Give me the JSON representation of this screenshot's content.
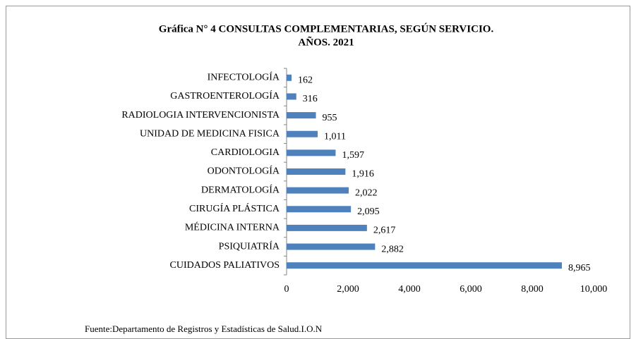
{
  "chart_data": {
    "type": "barh",
    "title": "Gráfica N° 4  CONSULTAS COMPLEMENTARIAS, SEGÚN SERVICIO.",
    "subtitle": "AÑOS. 2021",
    "source": "Fuente:Departamento de Registros y Estadísticas de Salud.I.O.N",
    "categories": [
      "INFECTOLOGÍA",
      "GASTROENTEROLOGÍA",
      "RADIOLOGIA INTERVENCIONISTA",
      "UNIDAD DE MEDICINA FISICA",
      "CARDIOLOGIA",
      "ODONTOLOGÍA",
      "DERMATOLOGÍA",
      "CIRUGÍA PLÁSTICA",
      "MÉDICINA INTERNA",
      "PSIQUIATRÍA",
      "CUIDADOS PALIATIVOS"
    ],
    "values": [
      162,
      316,
      955,
      1011,
      1597,
      1916,
      2022,
      2095,
      2617,
      2882,
      8965
    ],
    "value_labels": [
      "162",
      "316",
      "955",
      "1,011",
      "1,597",
      "1,916",
      "2,022",
      "2,095",
      "2,617",
      "2,882",
      "8,965"
    ],
    "color": "#4f81bd",
    "xlim": [
      0,
      10000
    ],
    "xticks": [
      0,
      {
        "value": 2000,
        "label": "2,000"
      },
      {
        "value": 4000,
        "label": "4,000"
      },
      {
        "value": 6000,
        "label": "6,000"
      },
      {
        "value": 8000,
        "label": "8,000"
      },
      {
        "value": 10000,
        "label": "10,000"
      }
    ],
    "grid": false
  }
}
